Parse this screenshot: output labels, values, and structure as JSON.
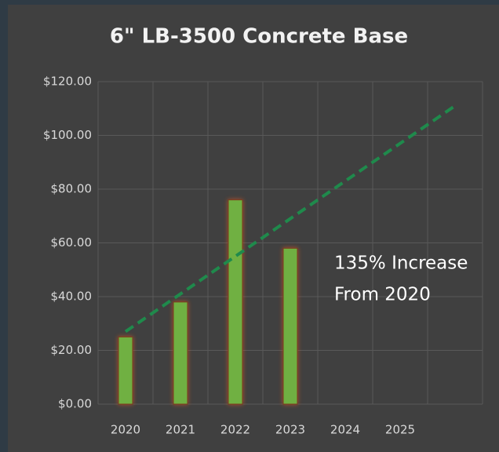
{
  "chart_data": {
    "type": "bar",
    "title": "6\" LB-3500 Concrete Base",
    "categories": [
      "2020",
      "2021",
      "2022",
      "2023",
      "2024",
      "2025",
      null
    ],
    "values": [
      25,
      38,
      76,
      58,
      null,
      null,
      null
    ],
    "color": "#6fb043",
    "trendline": {
      "values": [
        27,
        41,
        55,
        69,
        83,
        97,
        111
      ],
      "color": "#1f8a4c",
      "dashed": true
    },
    "ylim": [
      0,
      120
    ],
    "yticks": [
      {
        "value": 0,
        "label": "$0.00"
      },
      {
        "value": 20,
        "label": "$20.00"
      },
      {
        "value": 40,
        "label": "$40.00"
      },
      {
        "value": 60,
        "label": "$60.00"
      },
      {
        "value": 80,
        "label": "$80.00"
      },
      {
        "value": 100,
        "label": "$100.00"
      },
      {
        "value": 120,
        "label": "$120.00"
      }
    ],
    "grid": true,
    "annotation": [
      "135% Increase",
      "From 2020"
    ]
  }
}
